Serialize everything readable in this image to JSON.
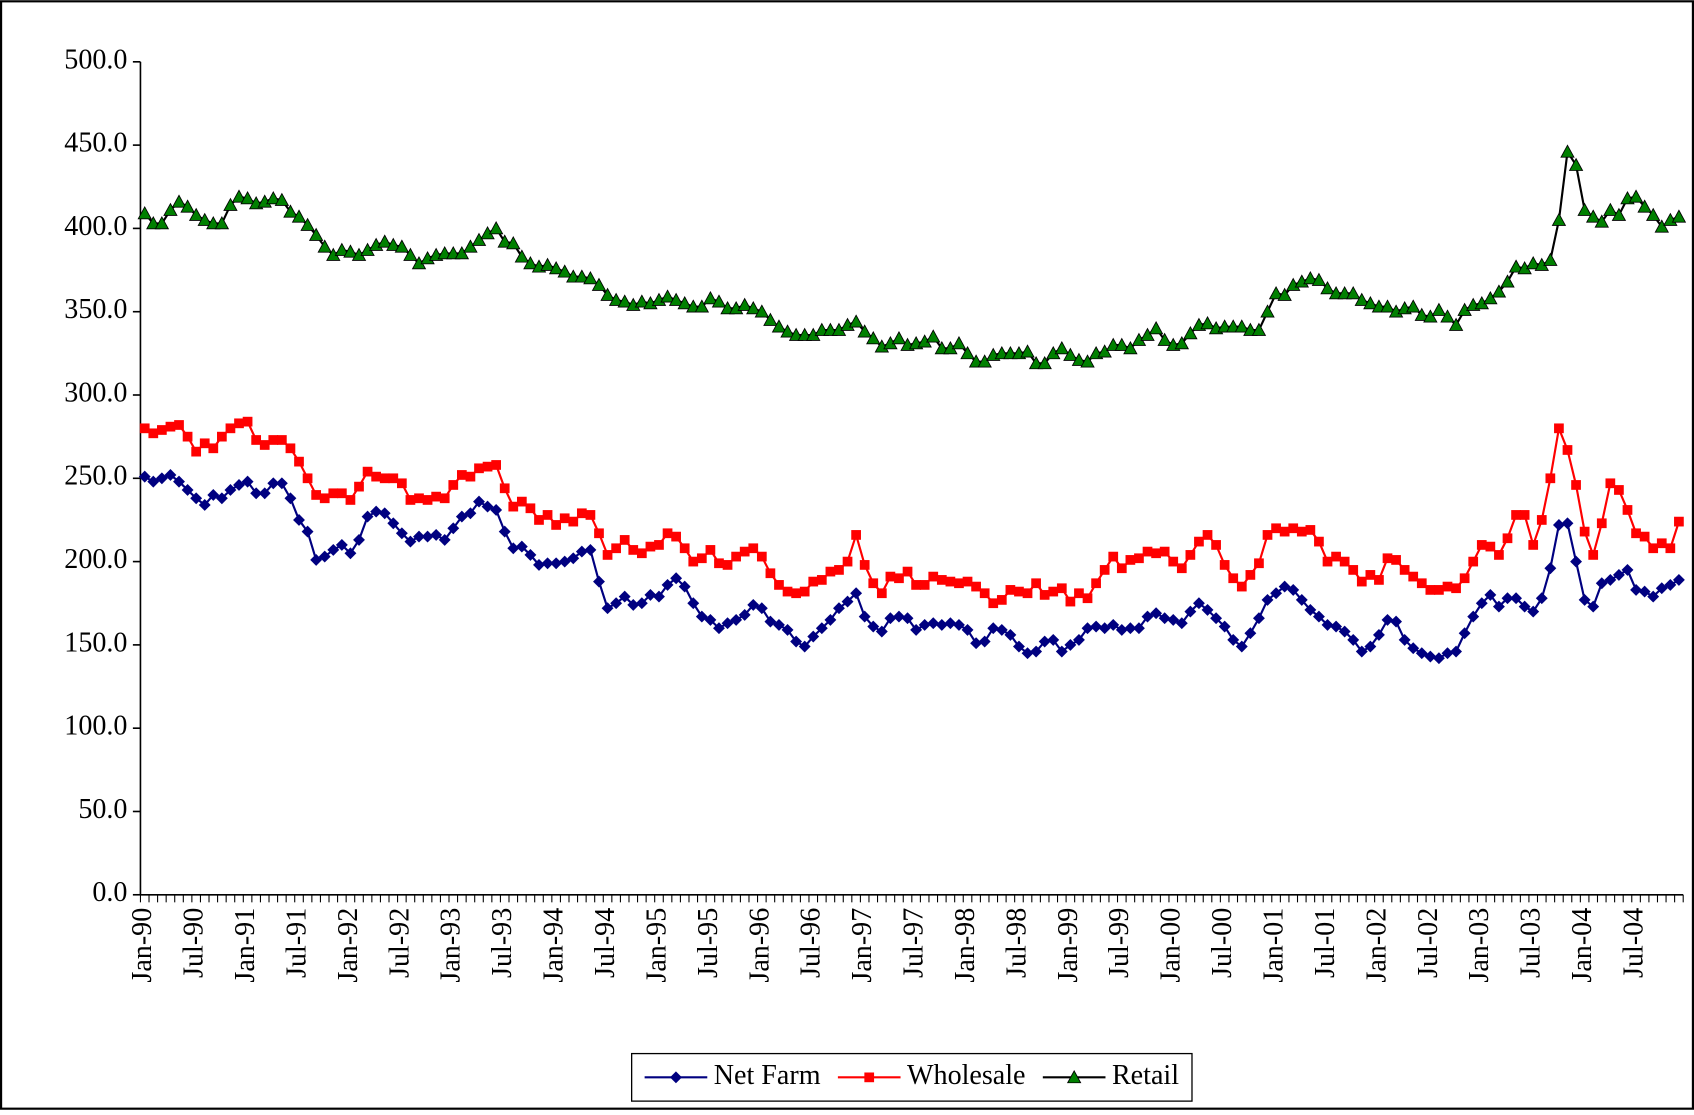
{
  "chart_data": {
    "type": "line",
    "categories": [
      "Jan-90",
      null,
      null,
      null,
      null,
      null,
      "Jul-90",
      null,
      null,
      null,
      null,
      null,
      "Jan-91",
      null,
      null,
      null,
      null,
      null,
      "Jul-91",
      null,
      null,
      null,
      null,
      null,
      "Jan-92",
      null,
      null,
      null,
      null,
      null,
      "Jul-92",
      null,
      null,
      null,
      null,
      null,
      "Jan-93",
      null,
      null,
      null,
      null,
      null,
      "Jul-93",
      null,
      null,
      null,
      null,
      null,
      "Jan-94",
      null,
      null,
      null,
      null,
      null,
      "Jul-94",
      null,
      null,
      null,
      null,
      null,
      "Jan-95",
      null,
      null,
      null,
      null,
      null,
      "Jul-95",
      null,
      null,
      null,
      null,
      null,
      "Jan-96",
      null,
      null,
      null,
      null,
      null,
      "Jul-96",
      null,
      null,
      null,
      null,
      null,
      "Jan-97",
      null,
      null,
      null,
      null,
      null,
      "Jul-97",
      null,
      null,
      null,
      null,
      null,
      "Jan-98",
      null,
      null,
      null,
      null,
      null,
      "Jul-98",
      null,
      null,
      null,
      null,
      null,
      "Jan-99",
      null,
      null,
      null,
      null,
      null,
      "Jul-99",
      null,
      null,
      null,
      null,
      null,
      "Jan-00",
      null,
      null,
      null,
      null,
      null,
      "Jul-00",
      null,
      null,
      null,
      null,
      null,
      "Jan-01",
      null,
      null,
      null,
      null,
      null,
      "Jul-01",
      null,
      null,
      null,
      null,
      null,
      "Jan-02",
      null,
      null,
      null,
      null,
      null,
      "Jul-02",
      null,
      null,
      null,
      null,
      null,
      "Jan-03",
      null,
      null,
      null,
      null,
      null,
      "Jul-03",
      null,
      null,
      null,
      null,
      null,
      "Jan-04",
      null,
      null,
      null,
      null,
      null,
      "Jul-04",
      null,
      null,
      null,
      null,
      null
    ],
    "series": [
      {
        "name": "Net Farm",
        "color": "#000080",
        "line_color": "#000080",
        "marker": "diamond",
        "values": [
          251,
          248,
          250,
          252,
          248,
          243,
          238,
          234,
          240,
          238,
          243,
          246,
          248,
          241,
          241,
          247,
          247,
          238,
          225,
          218,
          201,
          203,
          207,
          210,
          205,
          213,
          227,
          230,
          229,
          223,
          217,
          212,
          215,
          215,
          216,
          213,
          220,
          227,
          229,
          236,
          233,
          231,
          218,
          208,
          209,
          204,
          198,
          199,
          199,
          200,
          202,
          206,
          207,
          188,
          172,
          175,
          179,
          174,
          175,
          180,
          179,
          186,
          190,
          185,
          175,
          167,
          165,
          160,
          163,
          165,
          168,
          174,
          172,
          164,
          162,
          159,
          152,
          149,
          155,
          160,
          165,
          172,
          176,
          181,
          167,
          161,
          158,
          166,
          167,
          166,
          159,
          162,
          163,
          162,
          163,
          162,
          159,
          151,
          152,
          160,
          159,
          156,
          149,
          145,
          146,
          152,
          153,
          146,
          150,
          153,
          160,
          161,
          160,
          162,
          159,
          160,
          160,
          167,
          169,
          166,
          165,
          163,
          170,
          175,
          171,
          166,
          161,
          153,
          149,
          157,
          166,
          177,
          181,
          185,
          183,
          177,
          171,
          167,
          162,
          161,
          158,
          153,
          146,
          149,
          156,
          165,
          164,
          153,
          148,
          145,
          143,
          142,
          145,
          146,
          157,
          167,
          175,
          180,
          173,
          178,
          178,
          173,
          170,
          178,
          196,
          222,
          223,
          200,
          177,
          173,
          187,
          189,
          192,
          195,
          183,
          182,
          179,
          184,
          186,
          189
        ]
      },
      {
        "name": "Wholesale",
        "color": "#ff0000",
        "line_color": "#ff0000",
        "marker": "square",
        "values": [
          280,
          277,
          279,
          281,
          282,
          275,
          266,
          271,
          268,
          275,
          280,
          283,
          284,
          273,
          270,
          273,
          273,
          268,
          260,
          250,
          240,
          238,
          241,
          241,
          237,
          245,
          254,
          251,
          250,
          250,
          247,
          237,
          238,
          237,
          239,
          238,
          246,
          252,
          251,
          256,
          257,
          258,
          244,
          233,
          236,
          232,
          225,
          228,
          222,
          226,
          224,
          229,
          228,
          217,
          204,
          208,
          213,
          207,
          205,
          209,
          210,
          217,
          215,
          208,
          200,
          202,
          207,
          199,
          198,
          203,
          206,
          208,
          203,
          193,
          186,
          182,
          181,
          182,
          188,
          189,
          194,
          195,
          200,
          216,
          198,
          187,
          181,
          191,
          190,
          194,
          186,
          186,
          191,
          189,
          188,
          187,
          188,
          185,
          181,
          175,
          177,
          183,
          182,
          181,
          187,
          180,
          182,
          184,
          176,
          181,
          178,
          187,
          195,
          203,
          196,
          201,
          202,
          206,
          205,
          206,
          200,
          196,
          204,
          212,
          216,
          210,
          198,
          190,
          185,
          192,
          199,
          216,
          220,
          218,
          220,
          218,
          219,
          212,
          200,
          203,
          200,
          195,
          188,
          192,
          189,
          202,
          201,
          195,
          191,
          187,
          183,
          183,
          185,
          184,
          190,
          200,
          210,
          209,
          204,
          214,
          228,
          228,
          210,
          225,
          250,
          280,
          267,
          246,
          218,
          204,
          223,
          247,
          243,
          231,
          217,
          215,
          208,
          211,
          208,
          224
        ]
      },
      {
        "name": "Retail",
        "color": "#008000",
        "line_color": "#000000",
        "marker": "triangle",
        "values": [
          409,
          403,
          403,
          411,
          416,
          413,
          408,
          405,
          403,
          403,
          414,
          419,
          418,
          415,
          416,
          418,
          417,
          410,
          407,
          402,
          396,
          389,
          384,
          387,
          386,
          384,
          387,
          390,
          392,
          390,
          389,
          384,
          379,
          382,
          384,
          385,
          385,
          385,
          389,
          393,
          397,
          400,
          392,
          391,
          383,
          379,
          377,
          378,
          376,
          374,
          371,
          371,
          370,
          366,
          360,
          357,
          356,
          354,
          356,
          355,
          357,
          359,
          357,
          355,
          353,
          353,
          358,
          356,
          352,
          352,
          354,
          352,
          350,
          345,
          341,
          338,
          336,
          336,
          336,
          339,
          339,
          339,
          342,
          344,
          338,
          334,
          329,
          331,
          334,
          330,
          331,
          332,
          335,
          328,
          328,
          331,
          325,
          320,
          320,
          324,
          325,
          325,
          325,
          326,
          319,
          319,
          325,
          328,
          324,
          321,
          320,
          325,
          326,
          330,
          330,
          328,
          333,
          336,
          340,
          333,
          330,
          331,
          337,
          342,
          343,
          340,
          341,
          341,
          341,
          339,
          339,
          350,
          361,
          360,
          366,
          368,
          370,
          369,
          364,
          361,
          361,
          361,
          357,
          355,
          353,
          353,
          350,
          352,
          353,
          348,
          347,
          351,
          347,
          342,
          351,
          354,
          355,
          358,
          362,
          368,
          377,
          376,
          379,
          378,
          381,
          405,
          446,
          438,
          411,
          407,
          404,
          411,
          408,
          418,
          419,
          413,
          408,
          401,
          405,
          407
        ]
      }
    ],
    "ylim": [
      0,
      500
    ],
    "yticks": [
      {
        "value": 0,
        "label": "0.0"
      },
      {
        "value": 50,
        "label": "50.0"
      },
      {
        "value": 100,
        "label": "100.0"
      },
      {
        "value": 150,
        "label": "150.0"
      },
      {
        "value": 200,
        "label": "200.0"
      },
      {
        "value": 250,
        "label": "250.0"
      },
      {
        "value": 300,
        "label": "300.0"
      },
      {
        "value": 350,
        "label": "350.0"
      },
      {
        "value": 400,
        "label": "400.0"
      },
      {
        "value": 450,
        "label": "450.0"
      },
      {
        "value": 500,
        "label": "500.0"
      }
    ],
    "grid": false,
    "legend": "bottom"
  }
}
